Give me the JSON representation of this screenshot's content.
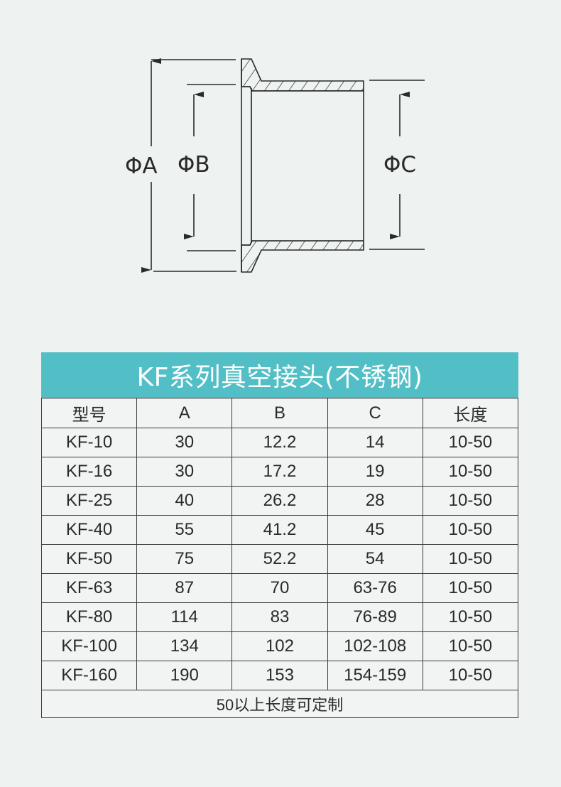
{
  "diagram": {
    "labels": {
      "a": "ΦA",
      "b": "ΦB",
      "c": "ΦC"
    },
    "line_color": "#2a2a2a"
  },
  "table": {
    "title": "KF系列真空接头(不锈钢)",
    "title_bg": "#52bfc6",
    "headers": [
      "型号",
      "A",
      "B",
      "C",
      "长度"
    ],
    "rows": [
      [
        "KF-10",
        "30",
        "12.2",
        "14",
        "10-50"
      ],
      [
        "KF-16",
        "30",
        "17.2",
        "19",
        "10-50"
      ],
      [
        "KF-25",
        "40",
        "26.2",
        "28",
        "10-50"
      ],
      [
        "KF-40",
        "55",
        "41.2",
        "45",
        "10-50"
      ],
      [
        "KF-50",
        "75",
        "52.2",
        "54",
        "10-50"
      ],
      [
        "KF-63",
        "87",
        "70",
        "63-76",
        "10-50"
      ],
      [
        "KF-80",
        "114",
        "83",
        "76-89",
        "10-50"
      ],
      [
        "KF-100",
        "134",
        "102",
        "102-108",
        "10-50"
      ],
      [
        "KF-160",
        "190",
        "153",
        "154-159",
        "10-50"
      ]
    ],
    "footer": "50以上长度可定制"
  }
}
